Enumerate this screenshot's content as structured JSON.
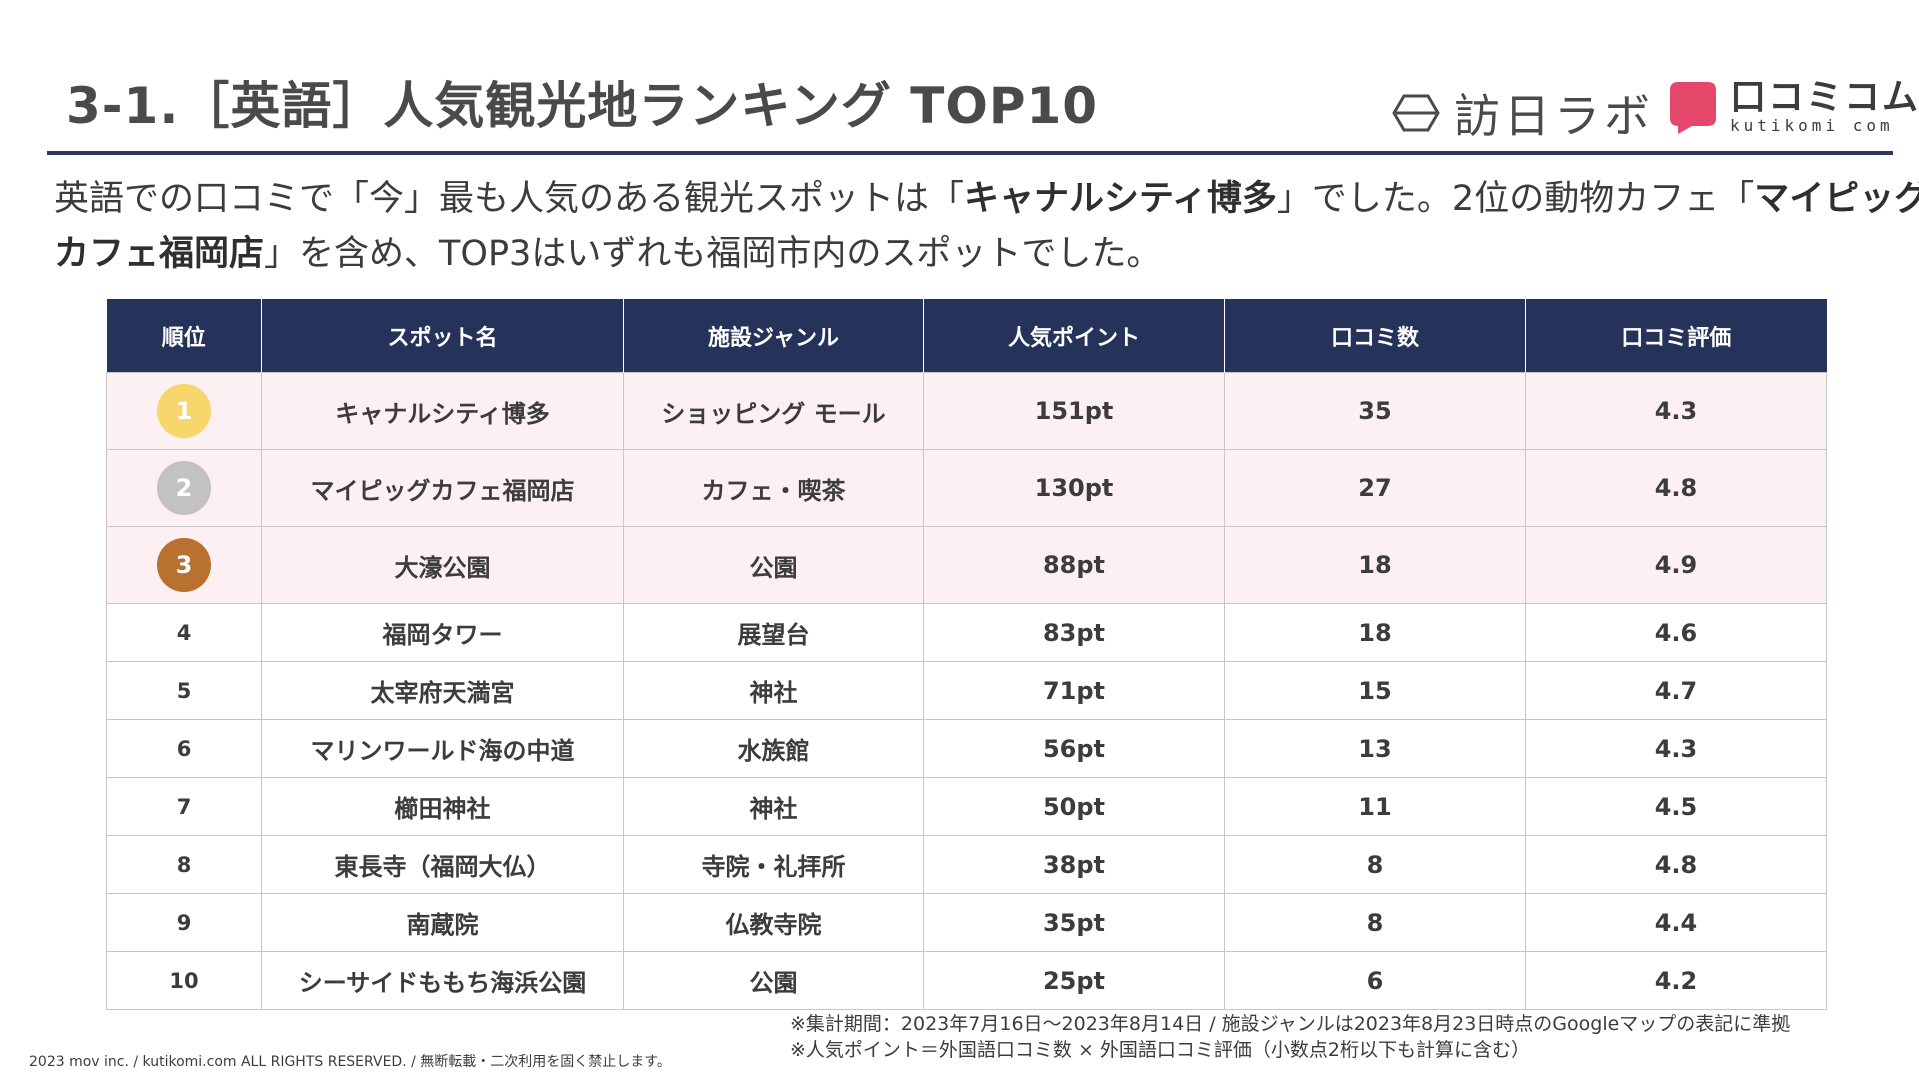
{
  "page": {
    "title": "3-1.［英語］人気観光地ランキング TOP10",
    "logos": {
      "inbound": {
        "text": "訪日ラボ",
        "icon": "hexagon-logo-icon"
      },
      "kutikomi": {
        "jp": "口コミコム",
        "en": "kutikomi com",
        "icon": "speech-bubble-logo-icon",
        "color": "#e5486b"
      }
    },
    "lead": {
      "t1": "英語での口コミで「今」最も人気のある観光スポットは「",
      "b1": "キャナルシティ博多",
      "t2": "」でした。2位の動物カフェ「",
      "b2": "マイピッグ",
      "b3": "カフェ福岡店",
      "t3": "」を含め、TOP3はいずれも福岡市内のスポットでした。"
    }
  },
  "table": {
    "headers": [
      "順位",
      "スポット名",
      "施設ジャンル",
      "人気ポイント",
      "口コミ数",
      "口コミ評価"
    ],
    "rows": [
      {
        "rank": "1",
        "name": "キャナルシティ博多",
        "genre": "ショッピング モール",
        "points": "151pt",
        "reviews": "35",
        "rating": "4.3"
      },
      {
        "rank": "2",
        "name": "マイピッグカフェ福岡店",
        "genre": "カフェ・喫茶",
        "points": "130pt",
        "reviews": "27",
        "rating": "4.8"
      },
      {
        "rank": "3",
        "name": "大濠公園",
        "genre": "公園",
        "points": "88pt",
        "reviews": "18",
        "rating": "4.9"
      },
      {
        "rank": "4",
        "name": "福岡タワー",
        "genre": "展望台",
        "points": "83pt",
        "reviews": "18",
        "rating": "4.6"
      },
      {
        "rank": "5",
        "name": "太宰府天満宮",
        "genre": "神社",
        "points": "71pt",
        "reviews": "15",
        "rating": "4.7"
      },
      {
        "rank": "6",
        "name": "マリンワールド海の中道",
        "genre": "水族館",
        "points": "56pt",
        "reviews": "13",
        "rating": "4.3"
      },
      {
        "rank": "7",
        "name": "櫛田神社",
        "genre": "神社",
        "points": "50pt",
        "reviews": "11",
        "rating": "4.5"
      },
      {
        "rank": "8",
        "name": "東長寺（福岡大仏）",
        "genre": "寺院・礼拝所",
        "points": "38pt",
        "reviews": "8",
        "rating": "4.8"
      },
      {
        "rank": "9",
        "name": "南蔵院",
        "genre": "仏教寺院",
        "points": "35pt",
        "reviews": "8",
        "rating": "4.4"
      },
      {
        "rank": "10",
        "name": "シーサイドももち海浜公園",
        "genre": "公園",
        "points": "25pt",
        "reviews": "6",
        "rating": "4.2"
      }
    ],
    "medal_colors": {
      "gold": "#f7d66b",
      "silver": "#c2c2c2",
      "bronze": "#b8712f"
    },
    "header_color": "#25335a",
    "top_row_color": "#fdf0f3"
  },
  "notes": [
    "※集計期間：2023年7月16日〜2023年8月14日 / 施設ジャンルは2023年8月23日時点のGoogleマップの表記に準拠",
    "※人気ポイント＝外国語口コミ数 × 外国語口コミ評価（小数点2桁以下も計算に含む）"
  ],
  "footer": "2023 mov inc. / kutikomi.com ALL RIGHTS RESERVED. / 無断転載・二次利用を固く禁止します。"
}
